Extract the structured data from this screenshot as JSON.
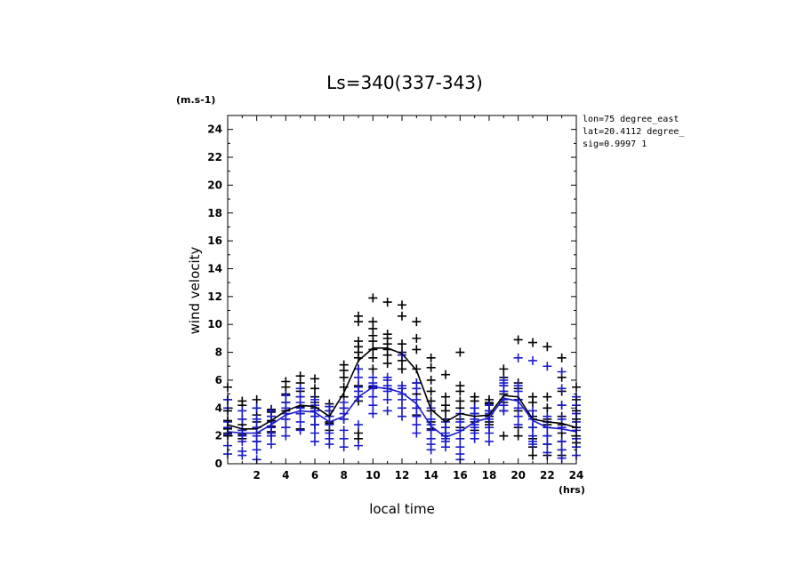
{
  "chart_data": {
    "type": "scatter",
    "title": "Ls=340(337-343)",
    "xlabel": "local time",
    "x_unit": "(hrs)",
    "ylabel": "wind velocity",
    "y_unit": "(m.s-1)",
    "xlim": [
      0,
      24
    ],
    "ylim": [
      0,
      25
    ],
    "x_ticks": [
      2,
      4,
      6,
      8,
      10,
      12,
      14,
      16,
      18,
      20,
      22,
      24
    ],
    "y_ticks": [
      0,
      2,
      4,
      6,
      8,
      10,
      12,
      14,
      16,
      18,
      20,
      22,
      24
    ],
    "grid": false,
    "info_lines": [
      "lon=75 degree_east",
      "lat=20.4112 degree_",
      "sig=0.9997 1"
    ],
    "series": [
      {
        "color": "#000000",
        "mean": {
          "x": [
            0,
            1,
            2,
            3,
            4,
            5,
            6,
            7,
            8,
            9,
            10,
            11,
            12,
            13,
            14,
            15,
            16,
            17,
            18,
            19,
            20,
            21,
            22,
            23,
            24
          ],
          "y": [
            2.8,
            2.5,
            2.5,
            3.1,
            3.8,
            4.2,
            4.1,
            3.4,
            5.1,
            7.4,
            8.3,
            8.3,
            7.9,
            6.7,
            3.9,
            3.0,
            3.6,
            3.4,
            3.5,
            4.9,
            4.8,
            3.2,
            3.0,
            2.9,
            2.6
          ]
        },
        "points": [
          {
            "x": 0,
            "y": [
              3.1,
              3.8,
              2.5,
              2.2,
              2.0,
              4.6,
              5.5
            ]
          },
          {
            "x": 1,
            "y": [
              2.1,
              2.4,
              2.8,
              3.2,
              1.8,
              4.2,
              4.5
            ]
          },
          {
            "x": 2,
            "y": [
              2.2,
              2.6,
              3.0,
              3.5,
              4.0,
              4.6,
              1.6
            ]
          },
          {
            "x": 3,
            "y": [
              2.3,
              2.7,
              3.1,
              3.4,
              3.7,
              3.9,
              2.0
            ]
          },
          {
            "x": 4,
            "y": [
              2.6,
              3.2,
              3.8,
              4.4,
              5.0,
              5.5,
              5.9
            ]
          },
          {
            "x": 5,
            "y": [
              2.5,
              3.6,
              4.1,
              4.8,
              5.2,
              5.8,
              6.3
            ]
          },
          {
            "x": 6,
            "y": [
              2.8,
              3.4,
              4.0,
              4.4,
              4.8,
              5.4,
              6.1
            ]
          },
          {
            "x": 7,
            "y": [
              2.4,
              2.9,
              3.4,
              3.8,
              4.1,
              4.3,
              3.0
            ]
          },
          {
            "x": 8,
            "y": [
              3.2,
              4.0,
              4.8,
              5.5,
              6.2,
              6.7,
              7.1
            ]
          },
          {
            "x": 9,
            "y": [
              1.8,
              4.5,
              5.6,
              6.8,
              7.6,
              8.0,
              8.4,
              8.8,
              10.2,
              10.6,
              2.2
            ]
          },
          {
            "x": 10,
            "y": [
              5.5,
              6.8,
              7.6,
              8.2,
              8.8,
              9.2,
              9.7,
              10.2,
              11.9
            ]
          },
          {
            "x": 11,
            "y": [
              7.2,
              7.8,
              8.2,
              8.6,
              9.0,
              9.3,
              11.6
            ]
          },
          {
            "x": 12,
            "y": [
              6.8,
              7.4,
              8.0,
              8.6,
              10.6,
              11.4,
              7.8
            ]
          },
          {
            "x": 13,
            "y": [
              3.5,
              4.0,
              5.0,
              5.8,
              6.8,
              8.2,
              9.0,
              10.2
            ]
          },
          {
            "x": 14,
            "y": [
              2.5,
              3.0,
              3.8,
              4.5,
              5.2,
              6.0,
              6.9,
              7.6
            ]
          },
          {
            "x": 15,
            "y": [
              2.0,
              2.6,
              3.2,
              3.8,
              4.2,
              4.8,
              6.4
            ]
          },
          {
            "x": 16,
            "y": [
              2.6,
              3.2,
              4.0,
              4.5,
              5.2,
              5.6,
              8.0
            ]
          },
          {
            "x": 17,
            "y": [
              2.4,
              3.0,
              3.6,
              4.0,
              4.5,
              4.8,
              3.2
            ]
          },
          {
            "x": 18,
            "y": [
              2.8,
              3.4,
              3.8,
              4.3,
              4.4,
              4.6,
              3.0
            ]
          },
          {
            "x": 19,
            "y": [
              2.0,
              3.8,
              4.4,
              5.0,
              5.6,
              6.2,
              6.8
            ]
          },
          {
            "x": 20,
            "y": [
              2.0,
              2.6,
              3.8,
              4.6,
              5.4,
              5.8,
              8.9
            ]
          },
          {
            "x": 21,
            "y": [
              0.6,
              1.2,
              1.8,
              2.6,
              3.4,
              4.4,
              4.8,
              8.7
            ]
          },
          {
            "x": 22,
            "y": [
              0.6,
              1.4,
              2.0,
              2.8,
              3.2,
              4.0,
              4.8,
              8.4
            ]
          },
          {
            "x": 23,
            "y": [
              0.6,
              1.0,
              1.6,
              2.2,
              2.8,
              3.4,
              4.2,
              5.2,
              6.2,
              7.6
            ]
          },
          {
            "x": 24,
            "y": [
              1.5,
              2.0,
              2.6,
              3.2,
              3.8,
              4.6,
              5.5
            ]
          }
        ]
      },
      {
        "color": "#1a1acc",
        "mean": {
          "x": [
            0,
            1,
            2,
            3,
            4,
            5,
            6,
            7,
            8,
            9,
            10,
            11,
            12,
            13,
            14,
            15,
            16,
            17,
            18,
            19,
            20,
            21,
            22,
            23,
            24
          ],
          "y": [
            2.3,
            2.2,
            2.2,
            2.8,
            3.5,
            3.8,
            3.7,
            3.0,
            3.4,
            4.8,
            5.5,
            5.4,
            5.1,
            4.3,
            2.7,
            1.9,
            2.3,
            3.0,
            3.3,
            4.7,
            4.5,
            3.1,
            2.6,
            2.5,
            2.3
          ]
        },
        "points": [
          {
            "x": 0,
            "y": [
              0.7,
              1.3,
              2.1,
              2.6,
              3.0,
              4.0,
              4.6
            ]
          },
          {
            "x": 1,
            "y": [
              0.6,
              0.9,
              1.6,
              2.0,
              2.4,
              3.2,
              3.8
            ]
          },
          {
            "x": 2,
            "y": [
              0.3,
              1.0,
              1.6,
              2.0,
              2.6,
              3.2,
              4.0
            ]
          },
          {
            "x": 3,
            "y": [
              1.4,
              2.0,
              2.6,
              3.0,
              3.4,
              3.8,
              2.2
            ]
          },
          {
            "x": 4,
            "y": [
              2.0,
              2.6,
              3.2,
              3.6,
              4.0,
              4.4,
              4.9
            ]
          },
          {
            "x": 5,
            "y": [
              2.4,
              3.0,
              3.6,
              4.0,
              4.4,
              4.8,
              5.4
            ]
          },
          {
            "x": 6,
            "y": [
              1.6,
              2.2,
              2.8,
              3.4,
              3.8,
              4.2,
              4.6
            ]
          },
          {
            "x": 7,
            "y": [
              1.4,
              1.8,
              2.2,
              2.8,
              3.4,
              3.8,
              4.1
            ]
          },
          {
            "x": 8,
            "y": [
              1.2,
              1.8,
              2.4,
              3.2,
              3.6,
              4.0,
              4.4
            ]
          },
          {
            "x": 9,
            "y": [
              1.3,
              2.8,
              4.8,
              5.2,
              5.5,
              6.2,
              6.8
            ]
          },
          {
            "x": 10,
            "y": [
              3.6,
              4.2,
              4.8,
              5.4,
              5.6,
              5.8,
              6.2
            ]
          },
          {
            "x": 11,
            "y": [
              3.8,
              4.6,
              5.2,
              5.4,
              5.6,
              6.0,
              6.2
            ]
          },
          {
            "x": 12,
            "y": [
              3.4,
              4.0,
              4.6,
              5.0,
              5.4,
              5.6,
              7.8
            ]
          },
          {
            "x": 13,
            "y": [
              2.2,
              2.8,
              3.4,
              4.0,
              4.6,
              5.4,
              5.8
            ]
          },
          {
            "x": 14,
            "y": [
              1.0,
              1.4,
              1.8,
              2.4,
              2.8,
              3.2,
              4.0
            ]
          },
          {
            "x": 15,
            "y": [
              1.2,
              1.6,
              1.8,
              2.0,
              2.2,
              2.6,
              3.0
            ]
          },
          {
            "x": 16,
            "y": [
              0.3,
              0.7,
              1.2,
              1.8,
              2.4,
              3.0,
              3.6
            ]
          },
          {
            "x": 17,
            "y": [
              1.8,
              2.2,
              2.8,
              3.2,
              3.6,
              4.0,
              2.6
            ]
          },
          {
            "x": 18,
            "y": [
              1.6,
              2.2,
              2.6,
              3.2,
              3.6,
              3.8,
              4.2
            ]
          },
          {
            "x": 19,
            "y": [
              3.8,
              4.2,
              4.6,
              5.2,
              5.6,
              5.8,
              6.0
            ]
          },
          {
            "x": 20,
            "y": [
              2.8,
              3.4,
              4.0,
              4.6,
              5.2,
              5.6,
              7.6
            ]
          },
          {
            "x": 21,
            "y": [
              1.4,
              2.0,
              2.6,
              3.2,
              3.8,
              7.4,
              1.6
            ]
          },
          {
            "x": 22,
            "y": [
              0.8,
              1.4,
              2.0,
              2.6,
              3.0,
              3.4,
              7.0
            ]
          },
          {
            "x": 23,
            "y": [
              0.4,
              1.0,
              1.6,
              2.6,
              3.2,
              4.2,
              5.4,
              6.6
            ]
          },
          {
            "x": 24,
            "y": [
              0.6,
              1.2,
              1.8,
              2.4,
              3.0,
              3.6,
              4.2,
              4.8
            ]
          }
        ]
      }
    ]
  }
}
